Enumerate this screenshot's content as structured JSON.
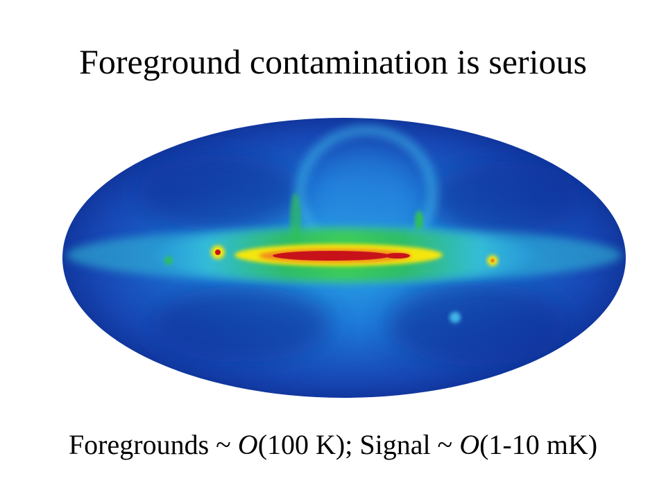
{
  "slide": {
    "title": "Foreground contamination is serious",
    "caption": {
      "part1": "Foregrounds ~ ",
      "o1": "O",
      "part2": "(100 K); Signal ~ ",
      "o2": "O",
      "part3": "(1-10 mK)"
    }
  },
  "sky_map": {
    "projection": "Mollweide all-sky",
    "colors": {
      "dark": "#0a1f7a",
      "blue": "#1f5fd0",
      "cyan": "#2aa7e6",
      "green": "#2fbf5a",
      "yellow": "#f5e60a",
      "orange": "#f08a1a",
      "red": "#c8121a"
    }
  }
}
